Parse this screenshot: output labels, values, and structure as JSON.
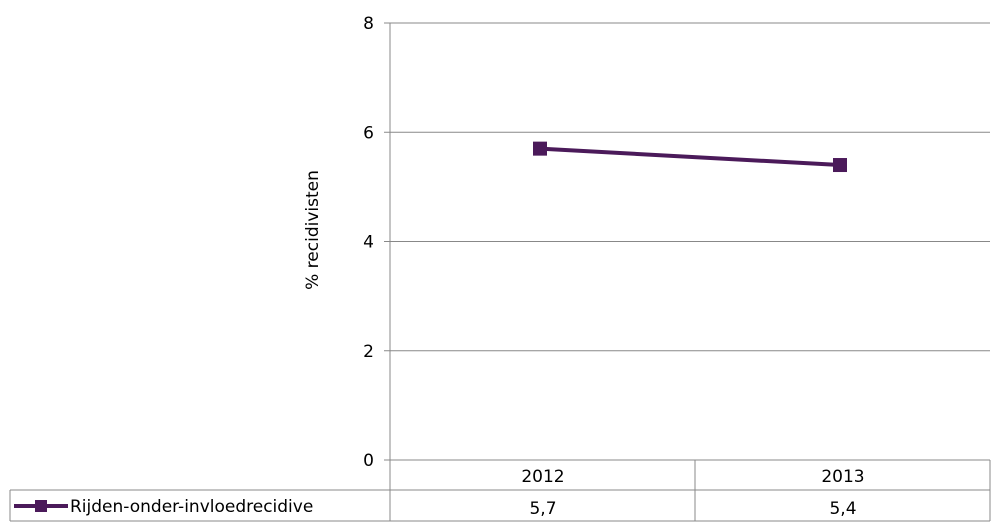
{
  "chart_data": {
    "type": "line",
    "ylabel": "% recidivisten",
    "ylim": [
      0,
      8
    ],
    "yticks": [
      "0",
      "2",
      "4",
      "6",
      "8"
    ],
    "categories": [
      "2012",
      "2013"
    ],
    "series": [
      {
        "name": "Rijden-onder-invloedrecidive",
        "values": [
          5.7,
          5.4
        ],
        "value_labels": [
          "5,7",
          "5,4"
        ],
        "color": "#4B1A5A"
      }
    ],
    "grid": true,
    "legend": "data-table"
  }
}
